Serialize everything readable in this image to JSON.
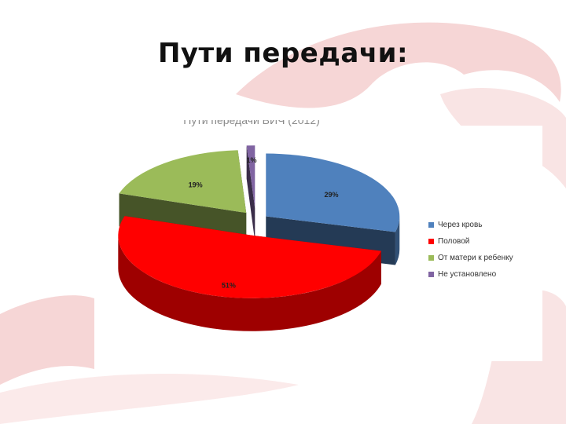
{
  "slide": {
    "title": "Пути передачи:"
  },
  "chart_data": {
    "type": "pie",
    "title": "Пути передачи ВИЧ (2012)",
    "categories": [
      "Через кровь",
      "Половой",
      "От матери к ребенку",
      "Не установлено"
    ],
    "values": [
      29,
      51,
      19,
      1
    ],
    "value_labels": [
      "29%",
      "51%",
      "19%",
      "1%"
    ],
    "colors": [
      "#4f81bd",
      "#ff0000",
      "#9bbb59",
      "#8064a2"
    ],
    "legend_position": "right",
    "exploded": true,
    "three_d": true
  },
  "colors": {
    "accent": "#e8282f",
    "background_shape": "#f6d6d6"
  }
}
